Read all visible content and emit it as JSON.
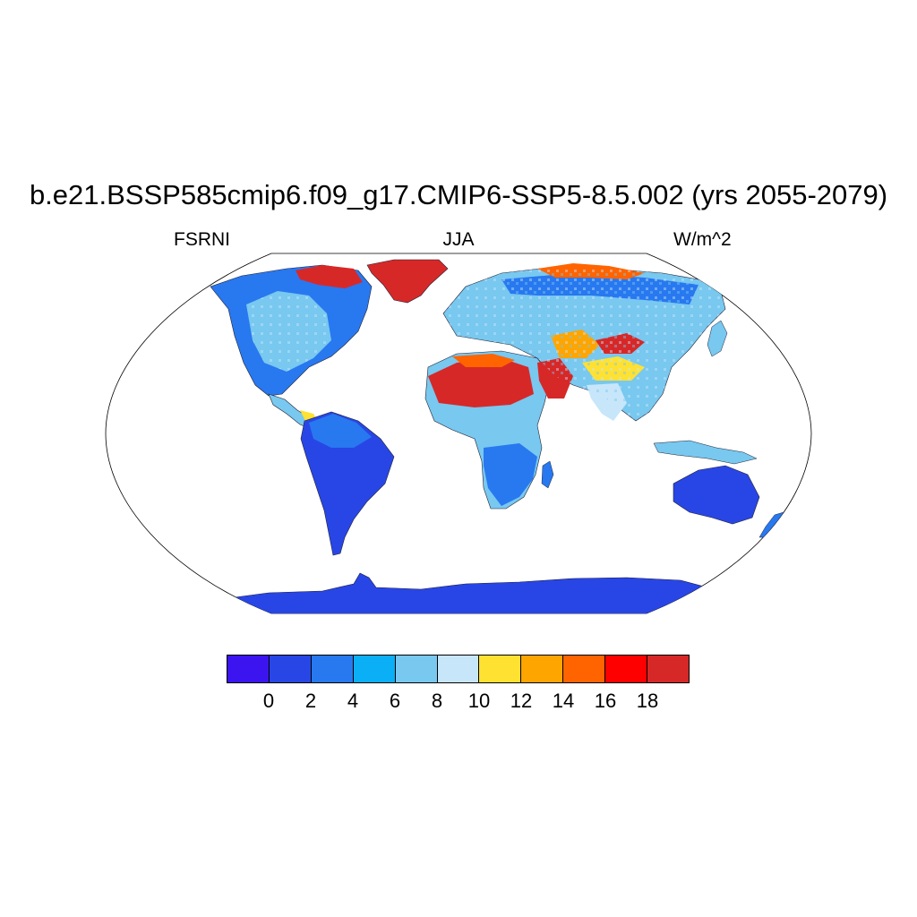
{
  "title": "b.e21.BSSP585cmip6.f09_g17.CMIP6-SSP5-8.5.002 (yrs 2055-2079)",
  "left_label": "FSRNI",
  "center_label": "JJA",
  "right_label": "W/m^2",
  "colorbar": {
    "colors": [
      "#3c14f0",
      "#2846e6",
      "#2878f0",
      "#0aaff5",
      "#78c8f0",
      "#c8e6fa",
      "#ffe132",
      "#ffa500",
      "#ff6400",
      "#ff0000",
      "#d72828"
    ],
    "labels": [
      "0",
      "2",
      "4",
      "6",
      "8",
      "10",
      "12",
      "14",
      "16",
      "18"
    ]
  }
}
